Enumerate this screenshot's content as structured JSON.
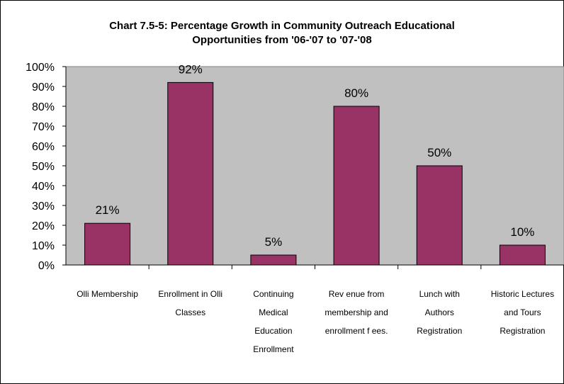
{
  "chart_data": {
    "type": "bar",
    "title_lines": [
      "Chart 7.5-5: Percentage Growth in Community Outreach Educational",
      "Opportunities from '06-'07 to '07-'08"
    ],
    "categories": [
      [
        "Olli Membership"
      ],
      [
        "Enrollment in Olli",
        "Classes"
      ],
      [
        "Continuing",
        "Medical",
        "Education",
        "Enrollment"
      ],
      [
        "Rev enue from",
        "membership and",
        "enrollment f ees."
      ],
      [
        "Lunch with",
        "Authors",
        "Registration"
      ],
      [
        "Historic Lectures",
        "and Tours",
        "Registration"
      ]
    ],
    "values": [
      21,
      92,
      5,
      80,
      50,
      10
    ],
    "data_labels": [
      "21%",
      "92%",
      "5%",
      "80%",
      "50%",
      "10%"
    ],
    "y_ticks": [
      "0%",
      "10%",
      "20%",
      "30%",
      "40%",
      "50%",
      "60%",
      "70%",
      "80%",
      "90%",
      "100%"
    ],
    "ylim": [
      0,
      100
    ],
    "xlabel": "",
    "ylabel": "",
    "grid": false,
    "legend": "none",
    "colors": {
      "bar_fill": "#993366",
      "bar_stroke": "#000000",
      "plot_background": "#c0c0c0",
      "figure_background": "#ffffff"
    }
  }
}
